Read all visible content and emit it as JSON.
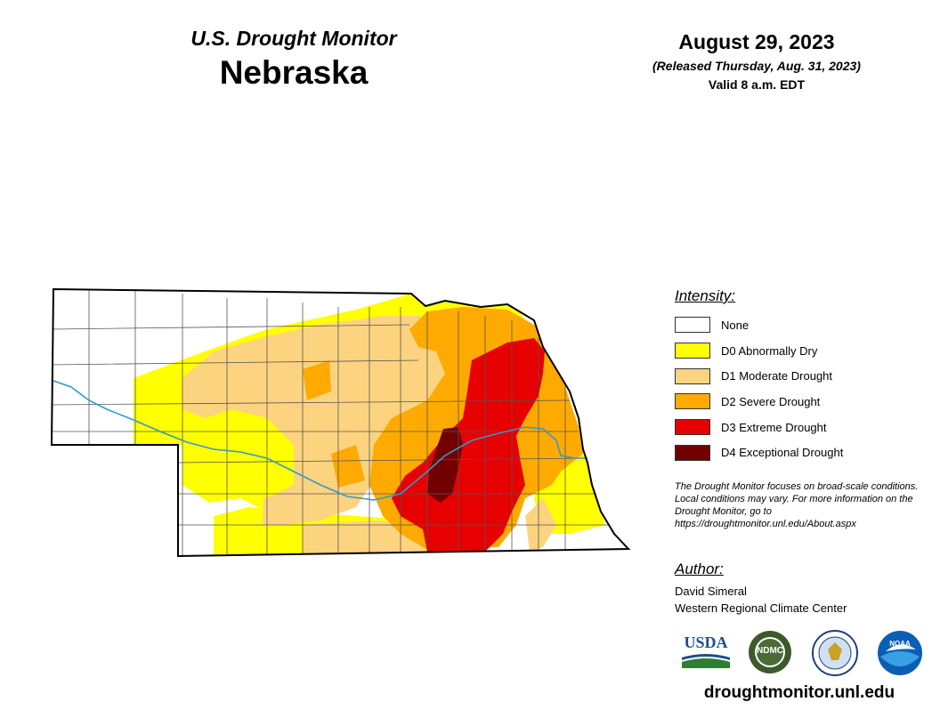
{
  "header": {
    "subtitle": "U.S. Drought Monitor",
    "state": "Nebraska",
    "date": "August 29, 2023",
    "released": "(Released Thursday, Aug. 31, 2023)",
    "valid": "Valid 8 a.m. EDT"
  },
  "legend": {
    "title": "Intensity:",
    "items": [
      {
        "label": "None",
        "color": "#ffffff"
      },
      {
        "label": "D0 Abnormally Dry",
        "color": "#ffff00"
      },
      {
        "label": "D1 Moderate Drought",
        "color": "#fcd37f"
      },
      {
        "label": "D2 Severe Drought",
        "color": "#ffaa00"
      },
      {
        "label": "D3 Extreme Drought",
        "color": "#e60000"
      },
      {
        "label": "D4 Exceptional Drought",
        "color": "#730000"
      }
    ]
  },
  "note": "The Drought Monitor focuses on broad-scale conditions. Local conditions may vary. For more information on the Drought Monitor, go to https://droughtmonitor.unl.edu/About.aspx",
  "author": {
    "title": "Author:",
    "name": "David Simeral",
    "org": "Western Regional Climate Center"
  },
  "logos": {
    "usda": "USDA",
    "ndmc": "NDMC",
    "noaa": "NOAA"
  },
  "site": "droughtmonitor.unl.edu",
  "colors": {
    "river": "#3399cc",
    "county_lines": "#555555",
    "state_outline": "#000000"
  }
}
